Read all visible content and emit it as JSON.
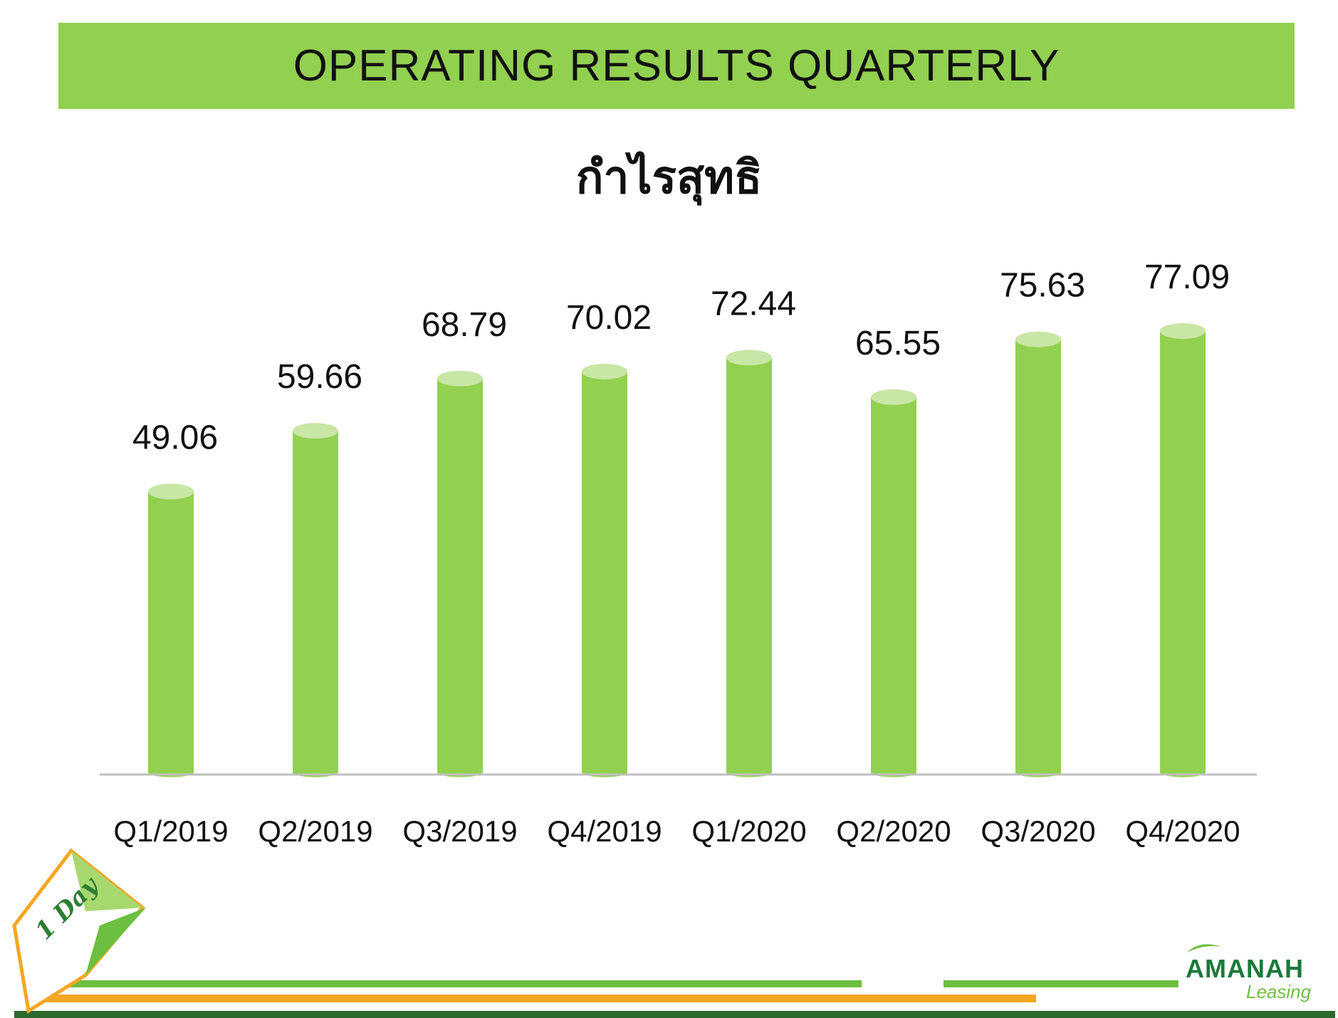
{
  "header": {
    "title": "OPERATING RESULTS QUARTERLY"
  },
  "chart_data": {
    "type": "bar",
    "title": "กำไรสุทธิ",
    "xlabel": "",
    "ylabel": "",
    "categories": [
      "Q1/2019",
      "Q2/2019",
      "Q3/2019",
      "Q4/2019",
      "Q1/2020",
      "Q2/2020",
      "Q3/2020",
      "Q4/2020"
    ],
    "series": [
      {
        "values": [
          49.06,
          59.66,
          68.79,
          70.02,
          72.44,
          65.55,
          75.63,
          77.09
        ]
      }
    ],
    "data_labels": [
      "49.06",
      "59.66",
      "68.79",
      "70.02",
      "72.44",
      "65.55",
      "75.63",
      "77.09"
    ],
    "ylim": [
      0,
      77.09
    ],
    "grid": false,
    "legend": "none",
    "colors": {
      "bar": "#92d050",
      "bar_top": "#c8e6a5",
      "axis": "#bfbfbf"
    }
  },
  "branding": {
    "logo_main": "AMANAH",
    "logo_sub": "Leasing",
    "badge_text": "1 Day"
  }
}
